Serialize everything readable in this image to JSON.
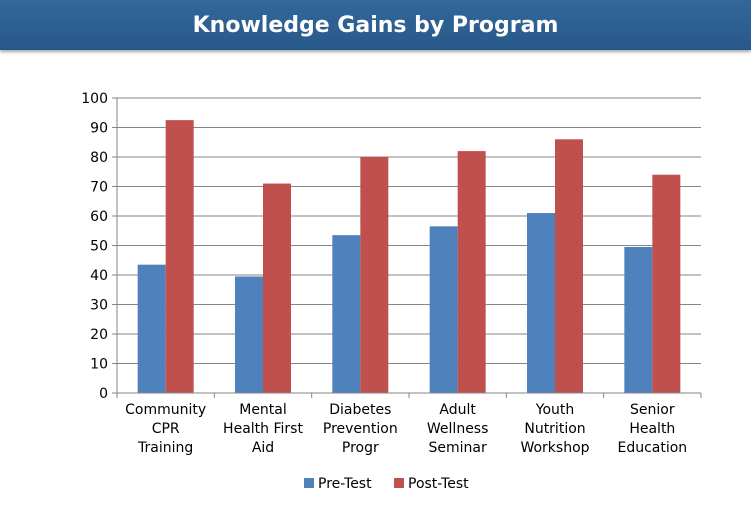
{
  "header": {
    "title": "Knowledge Gains by Program"
  },
  "colors": {
    "header_bg": "#2e5f8f",
    "pre": "#4f81bd",
    "post": "#c0504d",
    "grid": "#868686"
  },
  "chart_data": {
    "type": "bar",
    "title": "Knowledge Gains by Program",
    "categories": [
      [
        "Community",
        "CPR",
        "Training"
      ],
      [
        "Mental",
        "Health First",
        "Aid"
      ],
      [
        "Diabetes",
        "Prevention",
        "Progr"
      ],
      [
        "Adult",
        "Wellness",
        "Seminar"
      ],
      [
        "Youth",
        "Nutrition",
        "Workshop"
      ],
      [
        "Senior",
        "Health",
        "Education"
      ]
    ],
    "series": [
      {
        "name": "Pre-Test",
        "values": [
          43.5,
          39.5,
          53.5,
          56.5,
          61,
          49.5
        ]
      },
      {
        "name": "Post-Test",
        "values": [
          92.5,
          71,
          80,
          82,
          86,
          74
        ]
      }
    ],
    "yticks": [
      0,
      10,
      20,
      30,
      40,
      50,
      60,
      70,
      80,
      90,
      100
    ],
    "ylim": [
      0,
      100
    ],
    "grid": true,
    "legend": "bottom"
  }
}
